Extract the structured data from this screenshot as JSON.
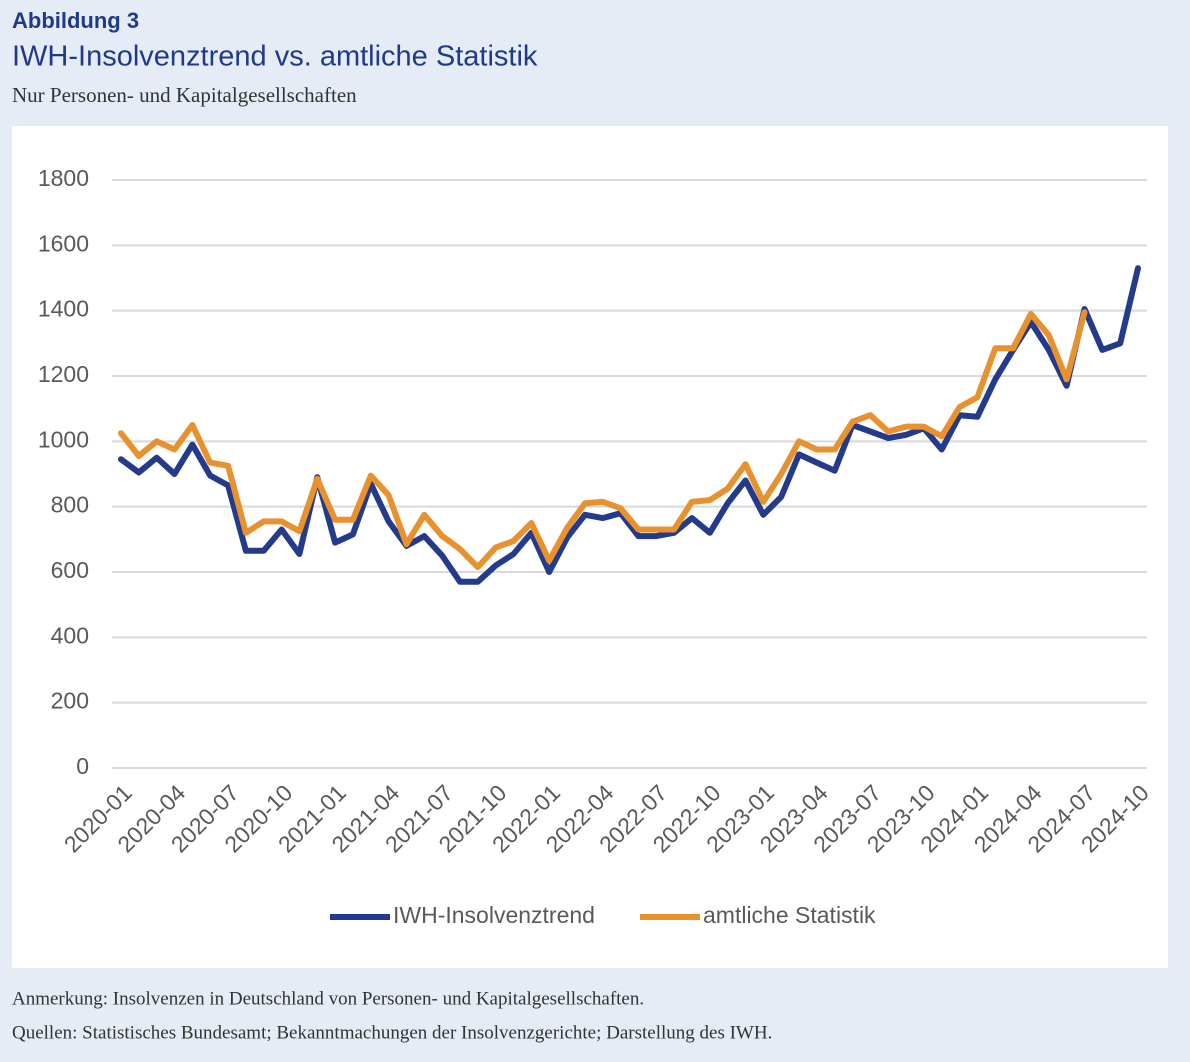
{
  "chart_data": {
    "type": "line",
    "figure_label": "Abbildung 3",
    "title": "IWH-Insolvenztrend vs. amtliche Statistik",
    "subtitle": "Nur Personen- und Kapitalgesellschaften",
    "note": "Anmerkung: Insolvenzen in Deutschland von Personen- und Kapitalgesellschaften.",
    "source": "Quellen: Statistisches Bundesamt; Bekanntmachungen der Insolvenzgerichte; Darstellung des IWH.",
    "categories": [
      "2020-01",
      null,
      null,
      "2020-04",
      null,
      null,
      "2020-07",
      null,
      null,
      "2020-10",
      null,
      null,
      "2021-01",
      null,
      null,
      "2021-04",
      null,
      null,
      "2021-07",
      null,
      null,
      "2021-10",
      null,
      null,
      "2022-01",
      null,
      null,
      "2022-04",
      null,
      null,
      "2022-07",
      null,
      null,
      "2022-10",
      null,
      null,
      "2023-01",
      null,
      null,
      "2023-04",
      null,
      null,
      "2023-07",
      null,
      null,
      "2023-10",
      null,
      null,
      "2024-01",
      null,
      null,
      "2024-04",
      null,
      null,
      "2024-07",
      null,
      null,
      "2024-10"
    ],
    "series": [
      {
        "name": "IWH-Insolvenztrend",
        "color": "#243b8c",
        "values": [
          945,
          905,
          950,
          900,
          990,
          895,
          865,
          665,
          665,
          730,
          655,
          890,
          690,
          715,
          870,
          755,
          680,
          710,
          650,
          570,
          570,
          620,
          655,
          720,
          600,
          705,
          775,
          765,
          780,
          710,
          710,
          720,
          765,
          720,
          810,
          880,
          775,
          830,
          960,
          935,
          910,
          1050,
          1030,
          1010,
          1020,
          1040,
          975,
          1080,
          1075,
          1190,
          1280,
          1365,
          1280,
          1170,
          1405,
          1280,
          1300,
          1530
        ]
      },
      {
        "name": "amtliche Statistik",
        "color": "#e8922f",
        "values": [
          1025,
          955,
          1000,
          975,
          1050,
          935,
          925,
          720,
          755,
          755,
          725,
          885,
          760,
          760,
          895,
          835,
          685,
          775,
          710,
          670,
          615,
          675,
          695,
          750,
          635,
          735,
          810,
          815,
          795,
          730,
          730,
          730,
          815,
          820,
          855,
          930,
          815,
          900,
          1000,
          975,
          975,
          1060,
          1080,
          1030,
          1045,
          1045,
          1015,
          1105,
          1135,
          1285,
          1285,
          1390,
          1325,
          1190,
          1395,
          null,
          null,
          null
        ]
      }
    ],
    "ylim": [
      0,
      1800
    ],
    "yticks": [
      0,
      200,
      400,
      600,
      800,
      1000,
      1200,
      1400,
      1600,
      1800
    ],
    "grid": true,
    "legend": "bottom"
  }
}
